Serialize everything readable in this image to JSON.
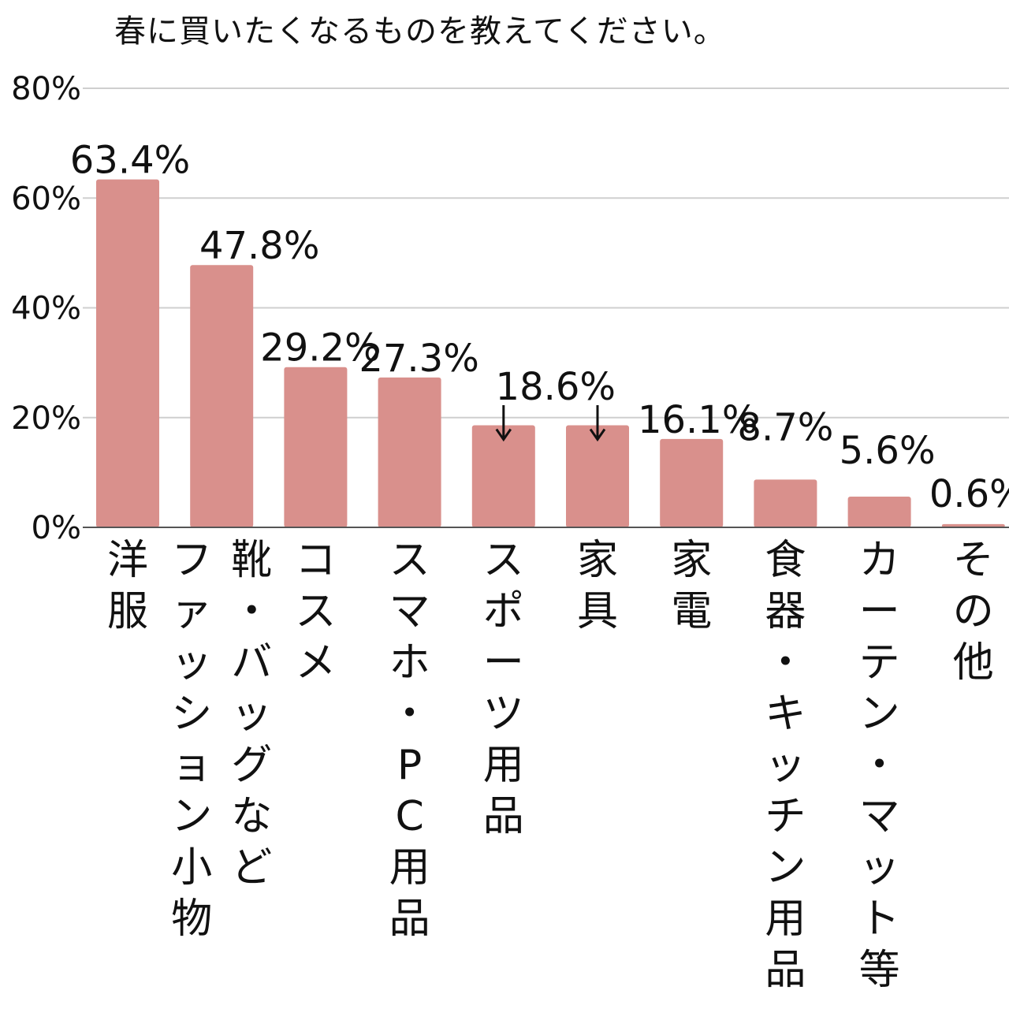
{
  "chart_data": {
    "type": "bar",
    "title": "春に買いたくなるものを教えてください。",
    "xlabel": "",
    "ylabel": "",
    "ylim": [
      0,
      80
    ],
    "yticks": [
      "0%",
      "20%",
      "40%",
      "60%",
      "80%"
    ],
    "grid": true,
    "bar_color": "#d9908c",
    "categories": [
      "洋服",
      "靴・バッグなどファッション小物",
      "コスメ",
      "スマホ・PC用品",
      "スポーツ用品",
      "家具",
      "家電",
      "食器・キッチン用品",
      "カーテン・マット等",
      "その他"
    ],
    "category_lines": [
      [
        "洋服"
      ],
      [
        "靴・バッグなど",
        "ファッション小物"
      ],
      [
        "コスメ"
      ],
      [
        "スマホ・PC用品"
      ],
      [
        "スポーツ用品"
      ],
      [
        "家具"
      ],
      [
        "家電"
      ],
      [
        "食器・キッチン用品"
      ],
      [
        "カーテン・マット等"
      ],
      [
        "その他"
      ]
    ],
    "values": [
      63.4,
      47.8,
      29.2,
      27.3,
      18.6,
      18.6,
      16.1,
      8.7,
      5.6,
      0.6
    ],
    "value_labels": [
      "63.4%",
      "47.8%",
      "29.2%",
      "27.3%",
      "18.6%",
      "",
      "16.1%",
      "8.7%",
      "5.6%",
      "0.6%"
    ],
    "label_arrows": [
      4,
      5
    ]
  }
}
